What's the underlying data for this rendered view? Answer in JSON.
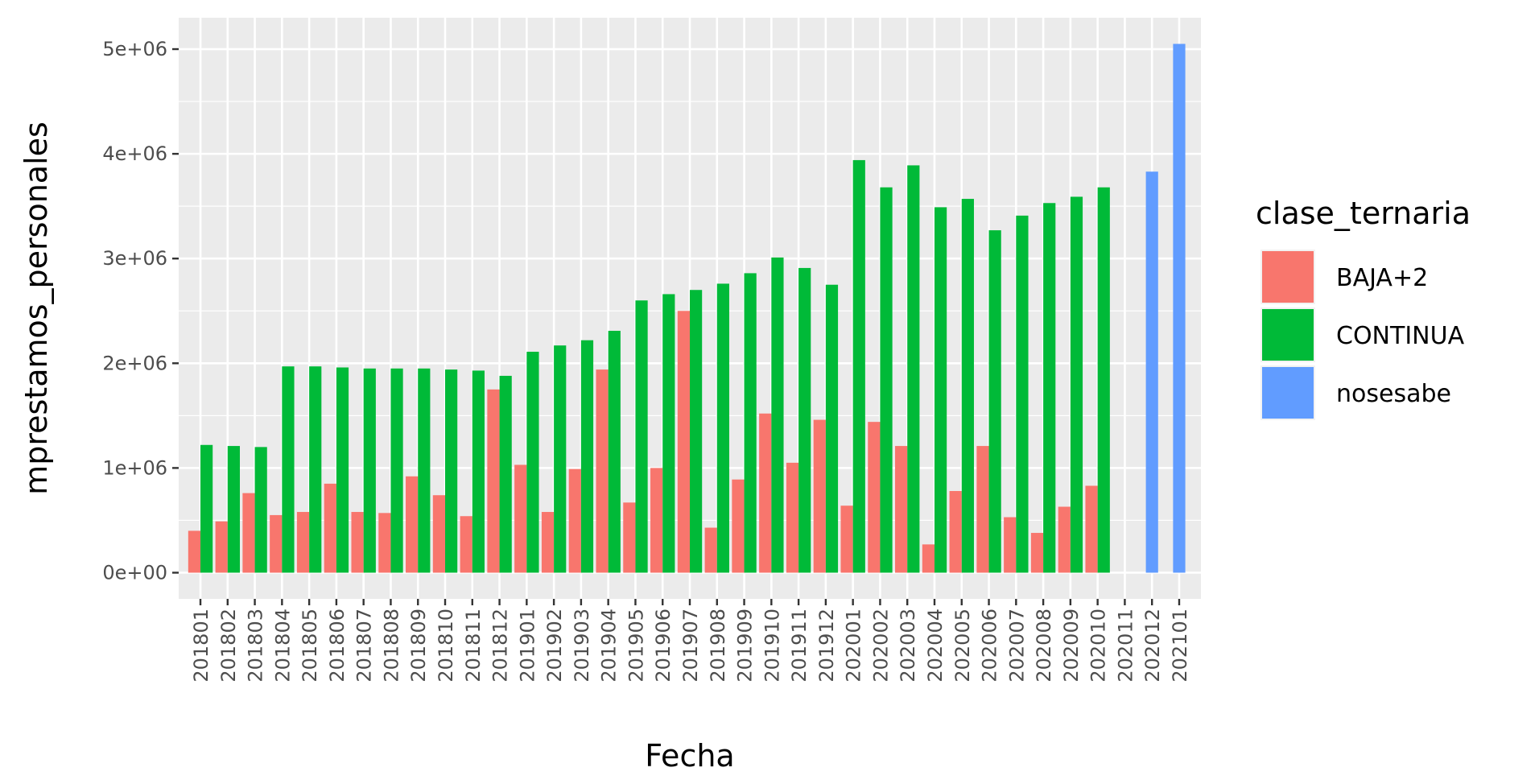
{
  "chart_data": {
    "type": "bar",
    "xlabel": "Fecha",
    "ylabel": "mprestamos_personales",
    "ylim": [
      -250000,
      5300000
    ],
    "y_ticks": [
      0,
      1000000,
      2000000,
      3000000,
      4000000,
      5000000
    ],
    "y_tick_labels": [
      "0e+00",
      "1e+06",
      "2e+06",
      "3e+06",
      "4e+06",
      "5e+06"
    ],
    "grid": true,
    "legend_position": "right",
    "legend_title": "clase_ternaria",
    "categories": [
      "201801",
      "201802",
      "201803",
      "201804",
      "201805",
      "201806",
      "201807",
      "201808",
      "201809",
      "201810",
      "201811",
      "201812",
      "201901",
      "201902",
      "201903",
      "201904",
      "201905",
      "201906",
      "201907",
      "201908",
      "201909",
      "201910",
      "201911",
      "201912",
      "202001",
      "202002",
      "202003",
      "202004",
      "202005",
      "202006",
      "202007",
      "202008",
      "202009",
      "202010",
      "202011",
      "202012",
      "202101"
    ],
    "series": [
      {
        "name": "BAJA+2",
        "color": "#F8766D",
        "values": [
          400000,
          490000,
          760000,
          550000,
          580000,
          850000,
          580000,
          570000,
          920000,
          740000,
          540000,
          1750000,
          1030000,
          580000,
          990000,
          1940000,
          670000,
          1000000,
          2500000,
          430000,
          890000,
          1520000,
          1050000,
          1460000,
          640000,
          1440000,
          1210000,
          270000,
          780000,
          1210000,
          530000,
          380000,
          630000,
          830000,
          null,
          null,
          null
        ]
      },
      {
        "name": "CONTINUA",
        "color": "#00BA38",
        "values": [
          1220000,
          1210000,
          1200000,
          1970000,
          1970000,
          1960000,
          1950000,
          1950000,
          1950000,
          1940000,
          1930000,
          1880000,
          2110000,
          2170000,
          2220000,
          2310000,
          2600000,
          2660000,
          2700000,
          2760000,
          2860000,
          3010000,
          2910000,
          2750000,
          3940000,
          3680000,
          3890000,
          3490000,
          3570000,
          3270000,
          3410000,
          3530000,
          3590000,
          3680000,
          null,
          null,
          null
        ]
      },
      {
        "name": "nosesabe",
        "color": "#619CFF",
        "values": [
          null,
          null,
          null,
          null,
          null,
          null,
          null,
          null,
          null,
          null,
          null,
          null,
          null,
          null,
          null,
          null,
          null,
          null,
          null,
          null,
          null,
          null,
          null,
          null,
          null,
          null,
          null,
          null,
          null,
          null,
          null,
          null,
          null,
          null,
          null,
          3830000,
          5050000
        ]
      }
    ]
  }
}
